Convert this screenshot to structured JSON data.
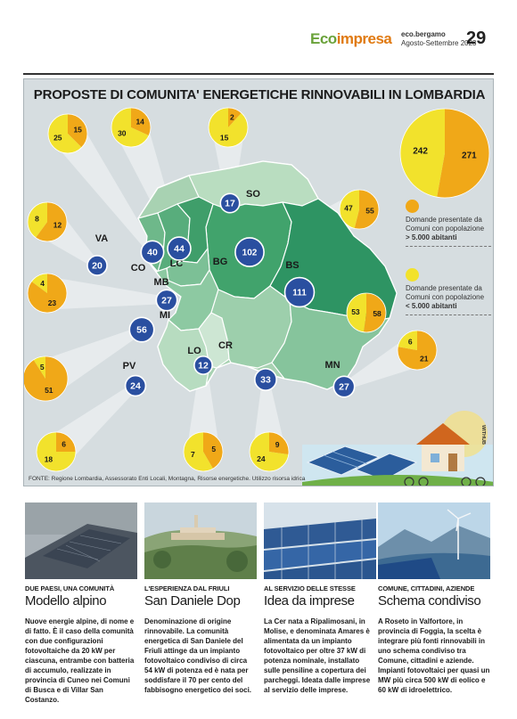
{
  "masthead": {
    "brand_a": "Eco",
    "brand_b": "impresa",
    "site": "eco.bergamo",
    "issue": "Agosto-Settembre 2023",
    "page": "29"
  },
  "infographic": {
    "title": "PROPOSTE DI COMUNITA' ENERGETICHE RINNOVABILI IN LOMBARDIA",
    "source": "FONTE: Regione Lombardia, Assessorato Enti Locali, Montagna, Risorse energetiche. Utilizzo risorsa idrica",
    "credit": "WITHUB",
    "colors": {
      "large_municipalities": "#f0a818",
      "small_municipalities": "#f2e22c",
      "province_circle": "#2a4fa0",
      "map_green": "#41a36c"
    },
    "legend": {
      "large_prefix": "Domande presentate da Comuni con popolazione",
      "large_bold": "> 5.000 abitanti",
      "small_prefix": "Domande presentate da Comuni con popolazione",
      "small_bold": "< 5.000 abitanti"
    },
    "total": {
      "large": "271",
      "small": "242"
    },
    "provinces": [
      {
        "code": "SO",
        "total": "17",
        "large": "2",
        "small": "15"
      },
      {
        "code": "VA",
        "total": "20",
        "large": "12",
        "small": "8"
      },
      {
        "code": "CO",
        "total": "40",
        "large": "15",
        "small": "25"
      },
      {
        "code": "LC",
        "total": "44",
        "large": "14",
        "small": "30"
      },
      {
        "code": "BG",
        "total": "102",
        "large": "55",
        "small": "47"
      },
      {
        "code": "BS",
        "total": "111",
        "large": "58",
        "small": "53"
      },
      {
        "code": "MB",
        "total": "27",
        "large": "23",
        "small": "4"
      },
      {
        "code": "MI",
        "total": "56",
        "large": "51",
        "small": "5"
      },
      {
        "code": "PV",
        "total": "24",
        "large": "6",
        "small": "18"
      },
      {
        "code": "LO",
        "total": "12",
        "large": "5",
        "small": "7"
      },
      {
        "code": "CR",
        "total": "33",
        "large": "9",
        "small": "24"
      },
      {
        "code": "MN",
        "total": "27",
        "large": "21",
        "small": "6"
      }
    ]
  },
  "articles": [
    {
      "kicker": "DUE PAESI, UNA COMUNITÀ",
      "headline": "Modello alpino",
      "body": "Nuove energie alpine, di nome e di fatto. È il caso della comunità con due configurazioni fotovoltaiche da 20 kW per ciascuna, entrambe con batteria di accumulo, realizzate in provincia di Cuneo nei Comuni di Busca e di Villar San Costanzo."
    },
    {
      "kicker": "L'ESPERIENZA DAL FRIULI",
      "headline": "San Daniele Dop",
      "body": "Denominazione di origine rinnovabile. La comunità energetica di San Daniele del Friuli attinge da un impianto fotovoltaico condiviso di circa 54 kW di potenza ed è nata per soddisfare il 70 per cento del fabbisogno energetico dei soci."
    },
    {
      "kicker": "AL SERVIZIO DELLE STESSE",
      "headline": "Idea da imprese",
      "body": "La Cer nata a Ripalimosani, in Molise, e denominata Amares è alimentata da un impianto fotovoltaico per oltre 37 kW di potenza nominale, installato sulle pensiline a copertura dei parcheggi. Ideata dalle imprese al servizio delle imprese."
    },
    {
      "kicker": "COMUNE, CITTADINI, AZIENDE",
      "headline": "Schema condiviso",
      "body": "A Roseto in Valfortore, in provincia di Foggia, la scelta è integrare più fonti rinnovabili in uno schema condiviso tra Comune, cittadini e aziende. Impianti fotovoltaici per quasi un MW più circa 500 kW di eolico e 60 kW di idroelettrico."
    }
  ]
}
